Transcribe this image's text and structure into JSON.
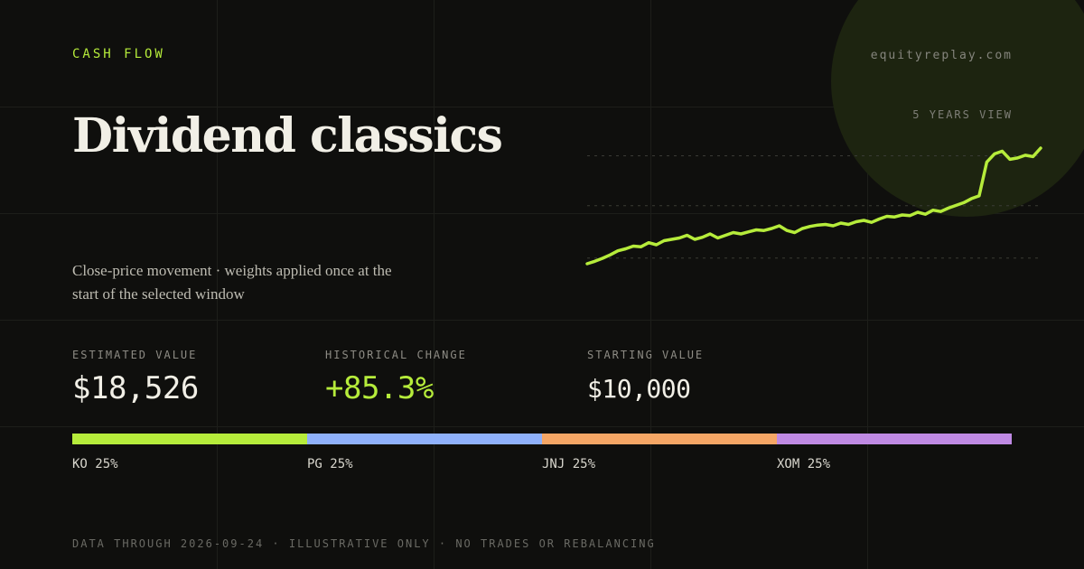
{
  "header": {
    "eyebrow": "CASH FLOW",
    "site": "equityreplay.com",
    "title": "Dividend classics",
    "subtitle": "Close-price movement · weights applied once at the start of the selected window"
  },
  "chart_data": {
    "type": "line",
    "title": "",
    "xlabel": "",
    "ylabel": "",
    "range_label": "5 YEARS VIEW",
    "grid": true,
    "color": "#b6ec3b",
    "series": [
      {
        "values": [
          10000,
          10180,
          10400,
          10650,
          10950,
          11100,
          11300,
          11250,
          11550,
          11400,
          11700,
          11800,
          11900,
          12100,
          11800,
          11950,
          12200,
          11900,
          12100,
          12300,
          12200,
          12350,
          12500,
          12450,
          12600,
          12800,
          12450,
          12300,
          12600,
          12750,
          12850,
          12900,
          12800,
          13000,
          12900,
          13100,
          13200,
          13050,
          13300,
          13500,
          13450,
          13600,
          13550,
          13800,
          13650,
          13950,
          13850,
          14100,
          14300,
          14500,
          14800,
          15000,
          17500,
          18100,
          18300,
          17700,
          17800,
          18000,
          17900,
          18526
        ]
      }
    ]
  },
  "stats": {
    "estimated_label": "ESTIMATED VALUE",
    "estimated_value": "$18,526",
    "change_label": "HISTORICAL CHANGE",
    "change_value": "+85.3%",
    "starting_label": "STARTING VALUE",
    "starting_value": "$10,000"
  },
  "allocation": [
    {
      "label": "KO 25%",
      "weight": 25,
      "color": "#b6ec3b"
    },
    {
      "label": "PG 25%",
      "weight": 25,
      "color": "#8fb1fb"
    },
    {
      "label": "JNJ 25%",
      "weight": 25,
      "color": "#f5a665"
    },
    {
      "label": "XOM 25%",
      "weight": 25,
      "color": "#bf8ae3"
    }
  ],
  "footer": "DATA THROUGH 2026-09-24 · ILLUSTRATIVE ONLY · NO TRADES OR REBALANCING"
}
